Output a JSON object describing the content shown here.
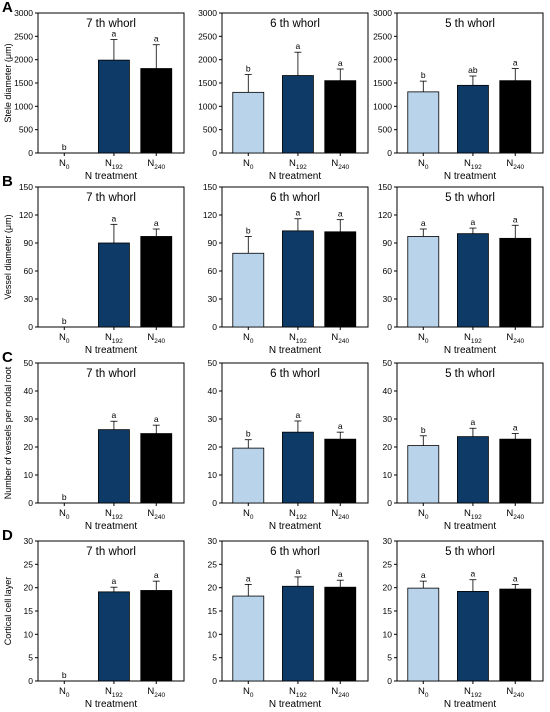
{
  "chart_data": [
    {
      "label": "A",
      "type": "bar",
      "ylabel": "Stele diameter (μm)",
      "xlabel": "N treatment",
      "ylim": [
        0,
        3000
      ],
      "yticks": [
        0,
        500,
        1000,
        1500,
        2000,
        2500,
        3000
      ],
      "panels": [
        {
          "title": "7 th whorl",
          "values": [
            0,
            1990,
            1810
          ],
          "errors": [
            0,
            440,
            510
          ],
          "letters": [
            "b",
            "a",
            "a"
          ],
          "show_ylabel": true
        },
        {
          "title": "6 th whorl",
          "values": [
            1300,
            1660,
            1550
          ],
          "errors": [
            380,
            500,
            250
          ],
          "letters": [
            "b",
            "a",
            "a"
          ],
          "show_ylabel": false
        },
        {
          "title": "5 th whorl",
          "values": [
            1310,
            1450,
            1550
          ],
          "errors": [
            230,
            200,
            260
          ],
          "letters": [
            "b",
            "ab",
            "a"
          ],
          "show_ylabel": false
        }
      ]
    },
    {
      "label": "B",
      "type": "bar",
      "ylabel": "Vessel diameter (μm)",
      "xlabel": "N treatment",
      "ylim": [
        0,
        150
      ],
      "yticks": [
        0,
        30,
        60,
        90,
        120,
        150
      ],
      "panels": [
        {
          "title": "7 th whorl",
          "values": [
            0,
            90,
            97
          ],
          "errors": [
            0,
            20,
            8
          ],
          "letters": [
            "b",
            "a",
            "a"
          ],
          "show_ylabel": true
        },
        {
          "title": "6 th whorl",
          "values": [
            79,
            103,
            102
          ],
          "errors": [
            18,
            13,
            13
          ],
          "letters": [
            "b",
            "a",
            "a"
          ],
          "show_ylabel": false
        },
        {
          "title": "5 th whorl",
          "values": [
            97,
            100,
            95
          ],
          "errors": [
            8,
            6,
            14
          ],
          "letters": [
            "a",
            "a",
            "a"
          ],
          "show_ylabel": false
        }
      ]
    },
    {
      "label": "C",
      "type": "bar",
      "ylabel": "Number of vessels per nodal root",
      "xlabel": "N treatment",
      "ylim": [
        0,
        50
      ],
      "yticks": [
        0,
        10,
        20,
        30,
        40,
        50
      ],
      "panels": [
        {
          "title": "7 th whorl",
          "values": [
            0,
            26.2,
            24.8
          ],
          "errors": [
            0,
            3,
            3
          ],
          "letters": [
            "b",
            "a",
            "a"
          ],
          "show_ylabel": true
        },
        {
          "title": "6 th whorl",
          "values": [
            19.6,
            25.3,
            22.8
          ],
          "errors": [
            3,
            4,
            2.5
          ],
          "letters": [
            "b",
            "a",
            "a"
          ],
          "show_ylabel": false
        },
        {
          "title": "5 th whorl",
          "values": [
            20.5,
            23.7,
            22.8
          ],
          "errors": [
            3.5,
            3,
            2
          ],
          "letters": [
            "b",
            "a",
            "a"
          ],
          "show_ylabel": false
        }
      ]
    },
    {
      "label": "D",
      "type": "bar",
      "ylabel": "Cortical cell layer",
      "xlabel": "N treatment",
      "ylim": [
        0,
        30
      ],
      "yticks": [
        0,
        5,
        10,
        15,
        20,
        25,
        30
      ],
      "panels": [
        {
          "title": "7 th whorl",
          "values": [
            0,
            19.1,
            19.4
          ],
          "errors": [
            0,
            1.0,
            2.0
          ],
          "letters": [
            "b",
            "a",
            "a"
          ],
          "show_ylabel": true
        },
        {
          "title": "6 th whorl",
          "values": [
            18.2,
            20.3,
            20.1
          ],
          "errors": [
            2.5,
            2.0,
            1.5
          ],
          "letters": [
            "a",
            "a",
            "a"
          ],
          "show_ylabel": false
        },
        {
          "title": "5 th whorl",
          "values": [
            19.9,
            19.2,
            19.7
          ],
          "errors": [
            1.5,
            2.5,
            1.0
          ],
          "letters": [
            "a",
            "a",
            "a"
          ],
          "show_ylabel": false
        }
      ]
    }
  ],
  "categories": [
    {
      "base": "N",
      "sub": "0"
    },
    {
      "base": "N",
      "sub": "192"
    },
    {
      "base": "N",
      "sub": "240"
    }
  ],
  "colors": [
    "#b8d3ea",
    "#0d3a66",
    "#000000"
  ]
}
